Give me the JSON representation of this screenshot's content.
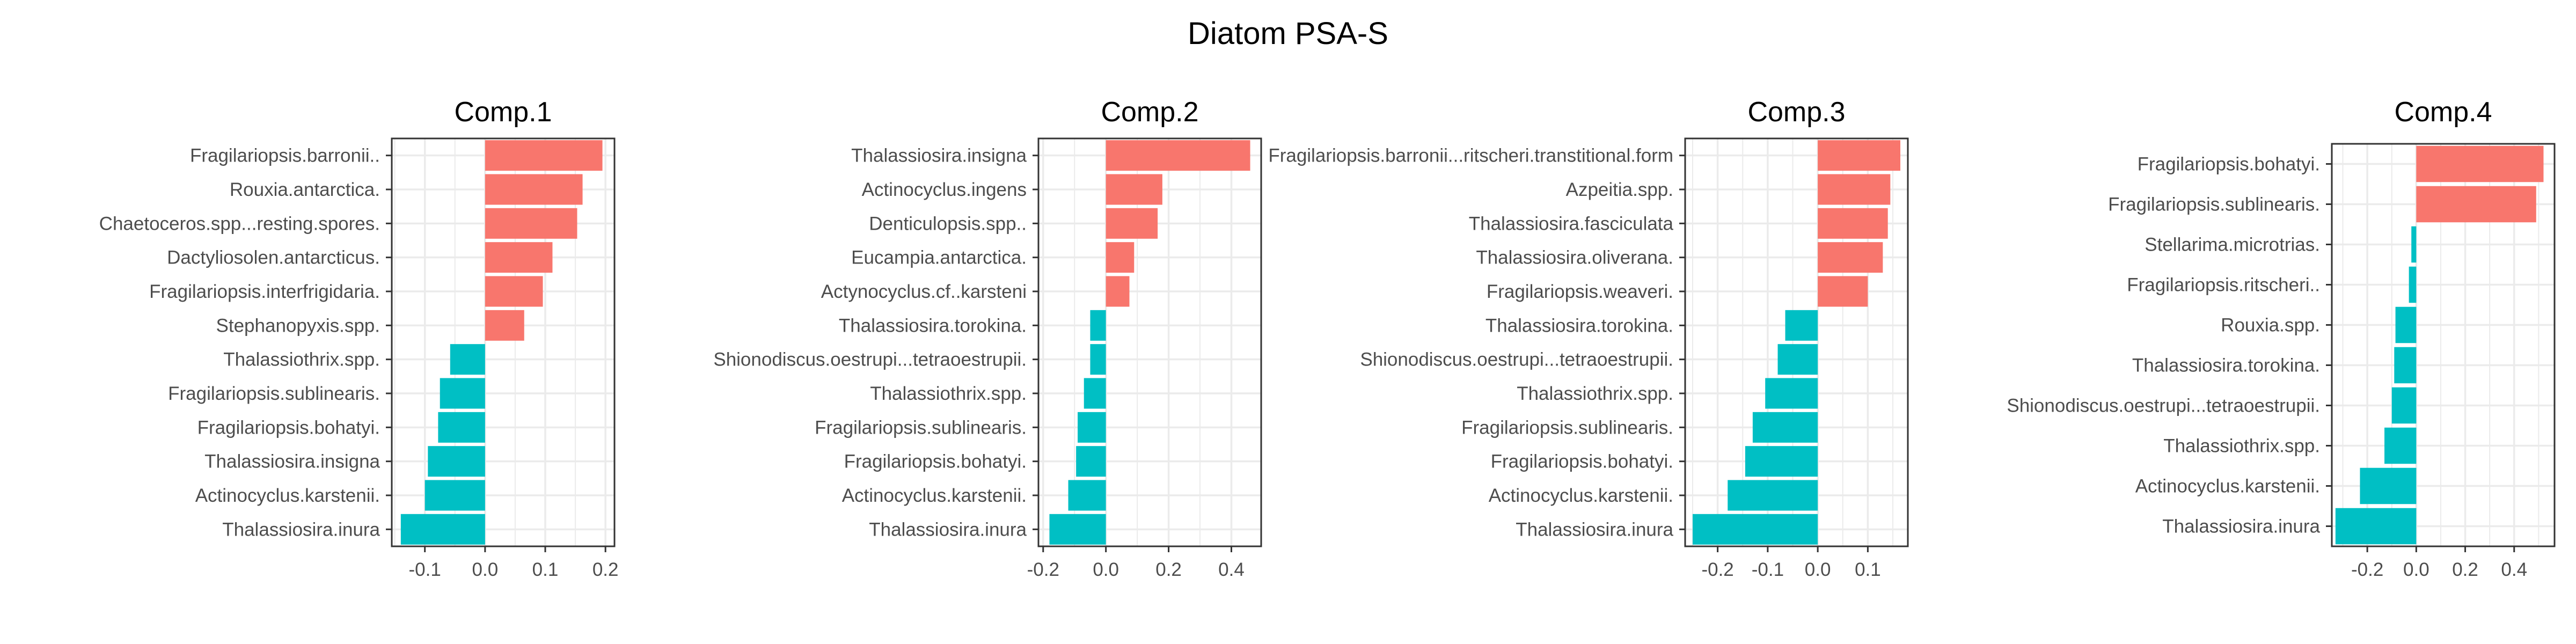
{
  "page": {
    "title": "Diatom PSA-S"
  },
  "colors": {
    "positive": "#F8766D",
    "negative": "#00BFC4",
    "grid": "#EBEBEB",
    "panel_border": "#333333",
    "text": "#4D4D4D"
  },
  "chart_data": [
    {
      "type": "bar",
      "orientation": "horizontal",
      "title": "Comp.1",
      "xlabel": "",
      "ylabel": "",
      "grid": true,
      "categories": [
        "Fragilariopsis.barronii..",
        "Rouxia.antarctica.",
        "Chaetoceros.spp...resting.spores.",
        "Dactyliosolen.antarcticus.",
        "Fragilariopsis.interfrigidaria.",
        "Stephanopyxis.spp.",
        "Thalassiothrix.spp.",
        "Fragilariopsis.sublinearis.",
        "Fragilariopsis.bohatyi.",
        "Thalassiosira.insigna",
        "Actinocyclus.karstenii.",
        "Thalassiosira.inura"
      ],
      "values": [
        0.195,
        0.162,
        0.153,
        0.112,
        0.096,
        0.065,
        -0.058,
        -0.075,
        -0.078,
        -0.095,
        -0.1,
        -0.14
      ],
      "xlim": [
        -0.155,
        0.215
      ],
      "ticks": [
        -0.1,
        0.0,
        0.1,
        0.2
      ],
      "tick_labels": [
        "-0.1",
        "0.0",
        "0.1",
        "0.2"
      ]
    },
    {
      "type": "bar",
      "orientation": "horizontal",
      "title": "Comp.2",
      "xlabel": "",
      "ylabel": "",
      "grid": true,
      "categories": [
        "Thalassiosira.insigna",
        "Actinocyclus.ingens",
        "Denticulopsis.spp..",
        "Eucampia.antarctica.",
        "Actynocyclus.cf..karsteni",
        "Thalassiosira.torokina.",
        "Shionodiscus.oestrupi...tetraoestrupii.",
        "Thalassiothrix.spp.",
        "Fragilariopsis.sublinearis.",
        "Fragilariopsis.bohatyi.",
        "Actinocyclus.karstenii.",
        "Thalassiosira.inura"
      ],
      "values": [
        0.46,
        0.18,
        0.165,
        0.09,
        0.075,
        -0.05,
        -0.05,
        -0.07,
        -0.09,
        -0.095,
        -0.12,
        -0.18
      ],
      "xlim": [
        -0.215,
        0.495
      ],
      "ticks": [
        -0.2,
        0.0,
        0.2,
        0.4
      ],
      "tick_labels": [
        "-0.2",
        "0.0",
        "0.2",
        "0.4"
      ]
    },
    {
      "type": "bar",
      "orientation": "horizontal",
      "title": "Comp.3",
      "xlabel": "",
      "ylabel": "",
      "grid": true,
      "categories": [
        "Fragilariopsis.barronii...ritscheri.transtitional.form",
        "Azpeitia.spp.",
        "Thalassiosira.fasciculata",
        "Thalassiosira.oliverana.",
        "Fragilariopsis.weaveri.",
        "Thalassiosira.torokina.",
        "Shionodiscus.oestrupi...tetraoestrupii.",
        "Thalassiothrix.spp.",
        "Fragilariopsis.sublinearis.",
        "Fragilariopsis.bohatyi.",
        "Actinocyclus.karstenii.",
        "Thalassiosira.inura"
      ],
      "values": [
        0.165,
        0.145,
        0.14,
        0.13,
        0.1,
        -0.065,
        -0.08,
        -0.105,
        -0.13,
        -0.145,
        -0.18,
        -0.25
      ],
      "xlim": [
        -0.265,
        0.18
      ],
      "ticks": [
        -0.2,
        -0.1,
        0.0,
        0.1
      ],
      "tick_labels": [
        "-0.2",
        "-0.1",
        "0.0",
        "0.1"
      ]
    },
    {
      "type": "bar",
      "orientation": "horizontal",
      "title": "Comp.4",
      "xlabel": "",
      "ylabel": "",
      "grid": true,
      "categories": [
        "Fragilariopsis.bohatyi.",
        "Fragilariopsis.sublinearis.",
        "Stellarima.microtrias.",
        "Fragilariopsis.ritscheri..",
        "Rouxia.spp.",
        "Thalassiosira.torokina.",
        "Shionodiscus.oestrupi...tetraoestrupii.",
        "Thalassiothrix.spp.",
        "Actinocyclus.karstenii.",
        "Thalassiosira.inura"
      ],
      "values": [
        0.52,
        0.49,
        -0.02,
        -0.03,
        -0.085,
        -0.09,
        -0.1,
        -0.13,
        -0.23,
        -0.33
      ],
      "xlim": [
        -0.345,
        0.565
      ],
      "ticks": [
        -0.2,
        0.0,
        0.2,
        0.4
      ],
      "tick_labels": [
        "-0.2",
        "0.0",
        "0.2",
        "0.4"
      ]
    }
  ]
}
